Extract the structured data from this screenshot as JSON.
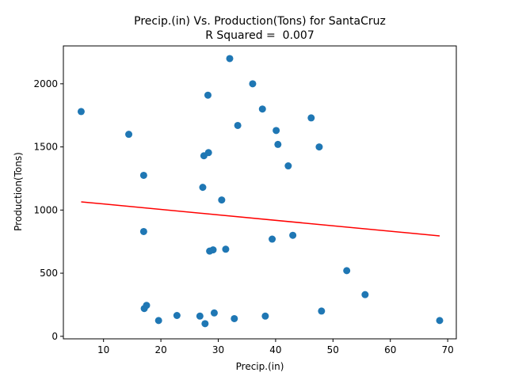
{
  "chart_data": {
    "type": "scatter",
    "title": "Precip.(in) Vs. Production(Tons) for SantaCruz",
    "subtitle": "R Squared =  0.007",
    "xlabel": "Precip.(in)",
    "ylabel": "Production(Tons)",
    "xlim": [
      3,
      71.5
    ],
    "ylim": [
      -20,
      2300
    ],
    "xticks": [
      10,
      20,
      30,
      40,
      50,
      60,
      70
    ],
    "yticks": [
      0,
      500,
      1000,
      1500,
      2000
    ],
    "grid": false,
    "colors": {
      "points": "#1f77b4",
      "regression": "#ff0000"
    },
    "points": [
      {
        "x": 6.1,
        "y": 1780
      },
      {
        "x": 14.4,
        "y": 1600
      },
      {
        "x": 17.0,
        "y": 1275
      },
      {
        "x": 17.0,
        "y": 830
      },
      {
        "x": 17.1,
        "y": 220
      },
      {
        "x": 17.5,
        "y": 245
      },
      {
        "x": 19.6,
        "y": 125
      },
      {
        "x": 22.8,
        "y": 165
      },
      {
        "x": 26.8,
        "y": 160
      },
      {
        "x": 27.3,
        "y": 1180
      },
      {
        "x": 27.5,
        "y": 1430
      },
      {
        "x": 27.7,
        "y": 100
      },
      {
        "x": 28.2,
        "y": 1910
      },
      {
        "x": 28.3,
        "y": 1455
      },
      {
        "x": 28.5,
        "y": 675
      },
      {
        "x": 29.1,
        "y": 685
      },
      {
        "x": 29.3,
        "y": 185
      },
      {
        "x": 30.6,
        "y": 1080
      },
      {
        "x": 31.3,
        "y": 690
      },
      {
        "x": 32.0,
        "y": 2200
      },
      {
        "x": 32.8,
        "y": 140
      },
      {
        "x": 33.4,
        "y": 1670
      },
      {
        "x": 36.0,
        "y": 2000
      },
      {
        "x": 37.7,
        "y": 1800
      },
      {
        "x": 38.2,
        "y": 160
      },
      {
        "x": 39.4,
        "y": 770
      },
      {
        "x": 40.1,
        "y": 1630
      },
      {
        "x": 40.4,
        "y": 1520
      },
      {
        "x": 42.2,
        "y": 1350
      },
      {
        "x": 43.0,
        "y": 800
      },
      {
        "x": 46.2,
        "y": 1730
      },
      {
        "x": 47.6,
        "y": 1500
      },
      {
        "x": 48.0,
        "y": 200
      },
      {
        "x": 52.4,
        "y": 520
      },
      {
        "x": 55.6,
        "y": 330
      },
      {
        "x": 68.6,
        "y": 125
      }
    ],
    "regression_line": {
      "x": [
        6.1,
        68.6
      ],
      "y": [
        1065,
        795
      ]
    }
  }
}
